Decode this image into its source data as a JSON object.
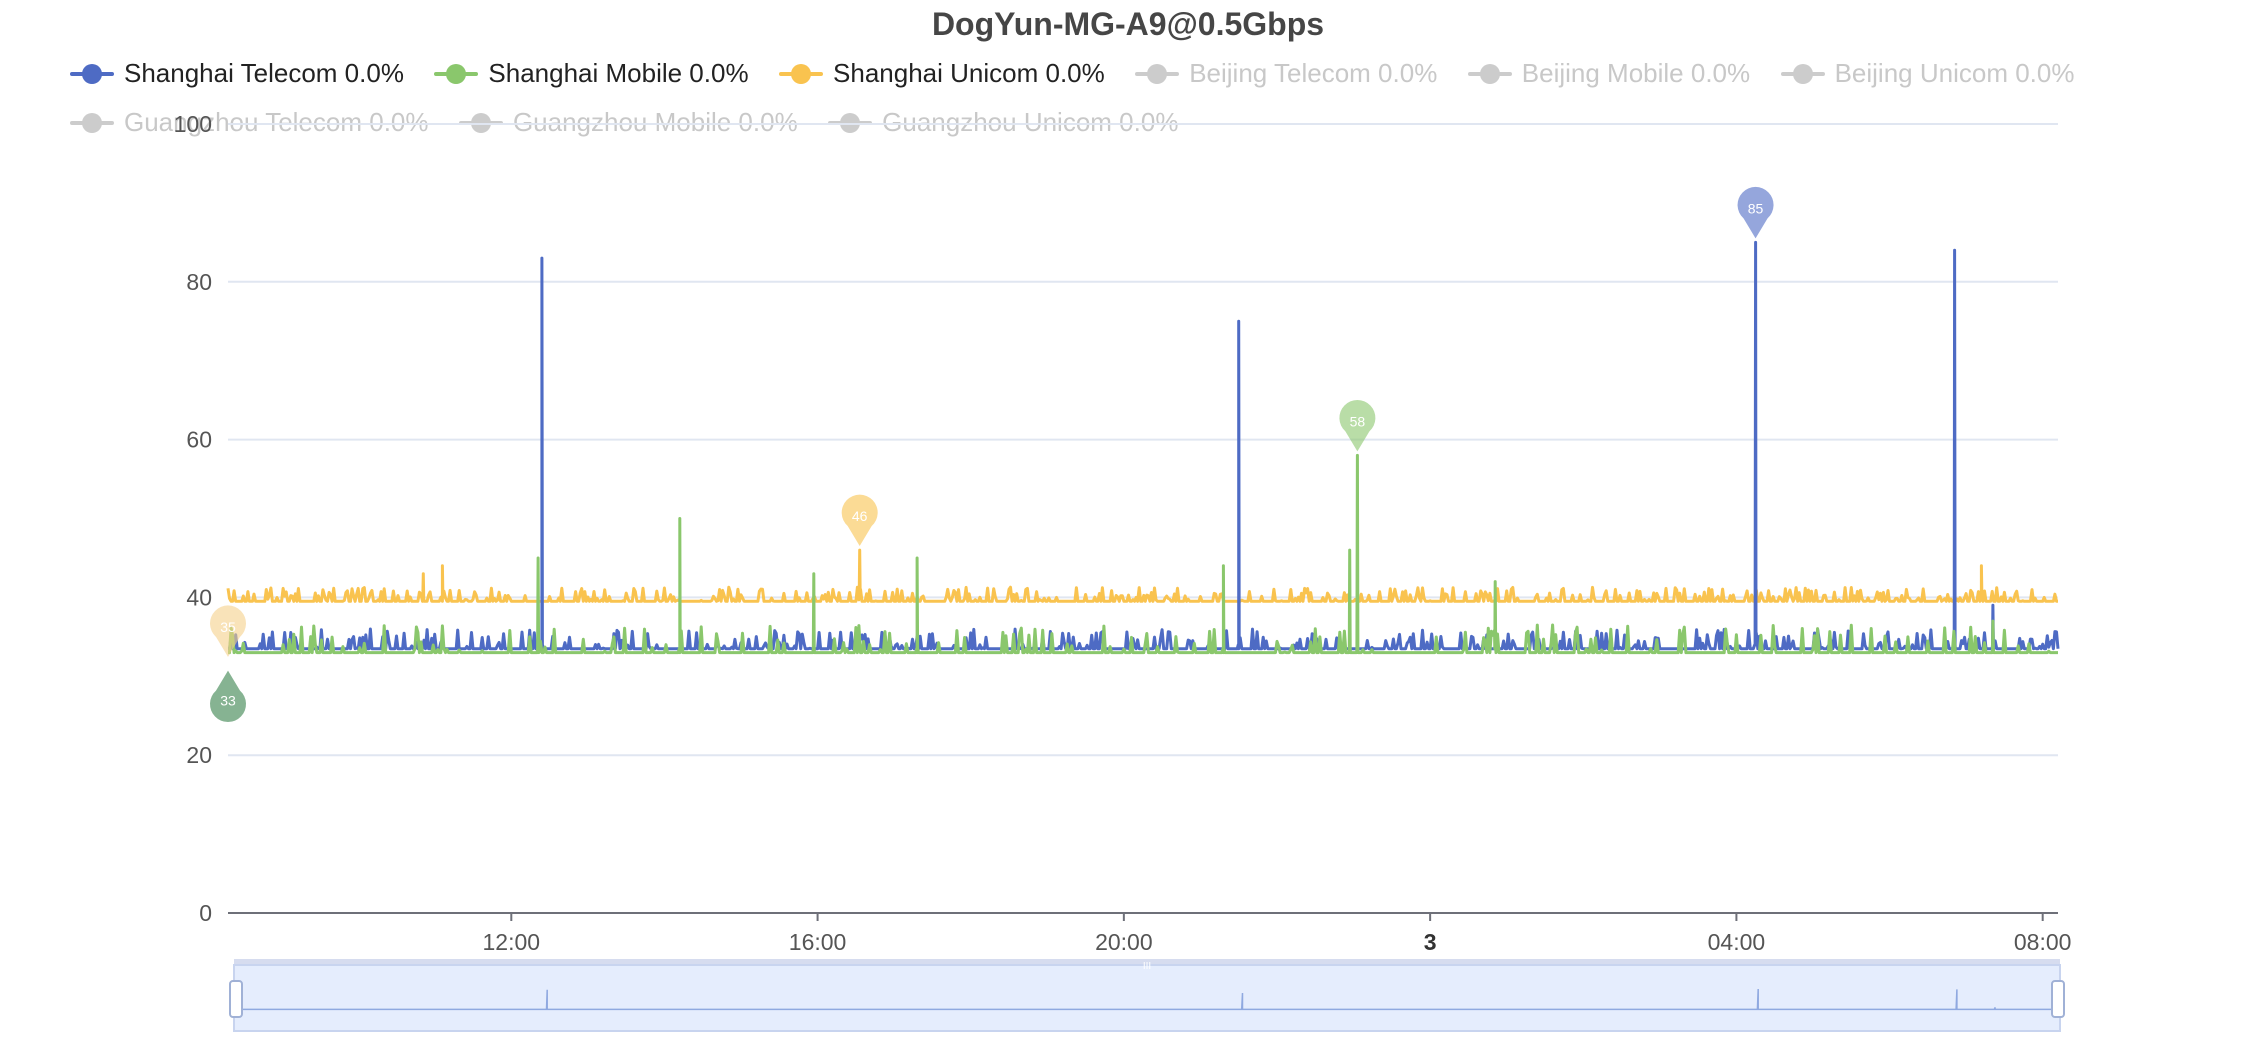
{
  "chart_data": {
    "type": "line",
    "title": "DogYun-MG-A9@0.5Gbps",
    "xlabel": "",
    "ylabel": "",
    "ylim": [
      0,
      100
    ],
    "y_ticks": [
      "0",
      "20",
      "40",
      "60",
      "80",
      "100"
    ],
    "x_ticks": [
      "12:00",
      "16:00",
      "20:00",
      "3",
      "04:00",
      "08:00"
    ],
    "x_tick_hours": [
      12,
      16,
      20,
      24,
      28,
      32
    ],
    "x_range_hours": [
      8.3,
      32.2
    ],
    "grid": true,
    "legend_position": "top",
    "series": [
      {
        "name": "Shanghai Telecom 0.0%",
        "color": "#4e6bc4",
        "visible": true,
        "baseline": 33.5,
        "spikes": [
          [
            12.4,
            83
          ],
          [
            21.5,
            75
          ],
          [
            28.25,
            85
          ],
          [
            30.85,
            84
          ],
          [
            31.35,
            39
          ]
        ],
        "markers": [
          {
            "label": "85",
            "hour": 28.25,
            "value": 85
          }
        ]
      },
      {
        "name": "Shanghai Mobile 0.0%",
        "color": "#8ac76c",
        "visible": true,
        "baseline": 33.0,
        "spikes": [
          [
            12.35,
            45
          ],
          [
            14.2,
            50
          ],
          [
            15.95,
            43
          ],
          [
            17.3,
            45
          ],
          [
            21.3,
            44
          ],
          [
            23.05,
            58
          ],
          [
            22.95,
            46
          ],
          [
            24.85,
            42
          ],
          [
            31.35,
            37
          ]
        ],
        "markers": [
          {
            "label": "58",
            "hour": 23.05,
            "value": 58
          },
          {
            "label": "33",
            "hour": 8.3,
            "value": 33
          }
        ]
      },
      {
        "name": "Shanghai Unicom 0.0%",
        "color": "#f9c34f",
        "visible": true,
        "baseline": 39.5,
        "spikes": [
          [
            10.85,
            43
          ],
          [
            11.1,
            44
          ],
          [
            16.55,
            46
          ],
          [
            31.2,
            44
          ]
        ],
        "markers": [
          {
            "label": "46",
            "hour": 16.55,
            "value": 46
          },
          {
            "label": "35",
            "hour": 8.3,
            "value": 35
          }
        ]
      },
      {
        "name": "Beijing Telecom 0.0%",
        "color": "#cccccc",
        "visible": false
      },
      {
        "name": "Beijing Mobile 0.0%",
        "color": "#cccccc",
        "visible": false
      },
      {
        "name": "Beijing Unicom 0.0%",
        "color": "#cccccc",
        "visible": false
      },
      {
        "name": "Guangzhou Telecom 0.0%",
        "color": "#cccccc",
        "visible": false
      },
      {
        "name": "Guangzhou Mobile 0.0%",
        "color": "#cccccc",
        "visible": false
      },
      {
        "name": "Guangzhou Unicom 0.0%",
        "color": "#cccccc",
        "visible": false
      }
    ],
    "zoom_slider": {
      "start_fraction": 0.0,
      "end_fraction": 1.0,
      "handle_glyph": "III"
    }
  }
}
